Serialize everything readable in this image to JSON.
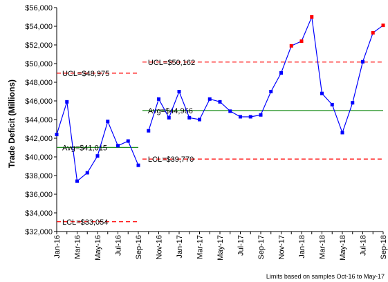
{
  "chart_data": {
    "type": "line",
    "ylabel": "Trade Deficit (Millions)",
    "ylim": [
      32000,
      56000
    ],
    "yticks": [
      32000,
      34000,
      36000,
      38000,
      40000,
      42000,
      44000,
      46000,
      48000,
      50000,
      52000,
      54000,
      56000
    ],
    "ytick_labels": [
      "$32,000",
      "$34,000",
      "$36,000",
      "$38,000",
      "$40,000",
      "$42,000",
      "$44,000",
      "$46,000",
      "$48,000",
      "$50,000",
      "$52,000",
      "$54,000",
      "$56,000"
    ],
    "months": [
      "Jan-16",
      "Feb-16",
      "Mar-16",
      "Apr-16",
      "May-16",
      "Jun-16",
      "Jul-16",
      "Aug-16",
      "Sep-16",
      "Oct-16",
      "Nov-16",
      "Dec-16",
      "Jan-17",
      "Feb-17",
      "Mar-17",
      "Apr-17",
      "May-17",
      "Jun-17",
      "Jul-17",
      "Aug-17",
      "Sep-17",
      "Oct-17",
      "Nov-17",
      "Dec-17",
      "Jan-18",
      "Feb-18",
      "Mar-18",
      "Apr-18",
      "May-18",
      "Jun-18",
      "Jul-18",
      "Aug-18",
      "Sep-18"
    ],
    "xtick_labels": [
      "Jan-16",
      "Mar-16",
      "May-16",
      "Jul-16",
      "Sep-16",
      "Nov-16",
      "Jan-17",
      "Mar-17",
      "May-17",
      "Jul-17",
      "Sep-17",
      "Nov-17",
      "Jan-18",
      "Mar-18",
      "May-18",
      "Jul-18",
      "Sep-18"
    ],
    "series": [
      {
        "color": "#0000ff",
        "values": [
          42400,
          45900,
          37400,
          38300,
          40100,
          43800,
          41200,
          41700,
          39100,
          42800,
          46200,
          44200,
          47000,
          44200,
          44000,
          46200,
          45900,
          44900,
          44300,
          44300,
          44500,
          47000,
          49000,
          51900,
          52400,
          55000,
          46800,
          45600,
          42600,
          45800,
          50200,
          53300,
          54100
        ],
        "segment_breaks_after": [
          "Sep-16"
        ],
        "signal_points": [
          "Dec-17",
          "Jan-18",
          "Feb-18",
          "Aug-18",
          "Sep-18"
        ],
        "signal_color": "#ff0000"
      }
    ],
    "control_limits": [
      {
        "from": "Jan-16",
        "to": "Sep-16",
        "avg": 41015,
        "ucl": 48975,
        "lcl": 33054,
        "avg_label": "Avg=$41,015",
        "ucl_label": "UCL=$48,975",
        "lcl_label": "LCL=$33,054"
      },
      {
        "from": "Oct-16",
        "to": "Sep-18",
        "avg": 44966,
        "ucl": 50162,
        "lcl": 39770,
        "avg_label": "Avg=$44,966",
        "ucl_label": "UCL=$50,162",
        "lcl_label": "LCL=$39,770"
      }
    ],
    "avg_color": "#008000",
    "limit_color": "#ff0000",
    "note": "Limits based on samples Oct-16 to May-17"
  }
}
